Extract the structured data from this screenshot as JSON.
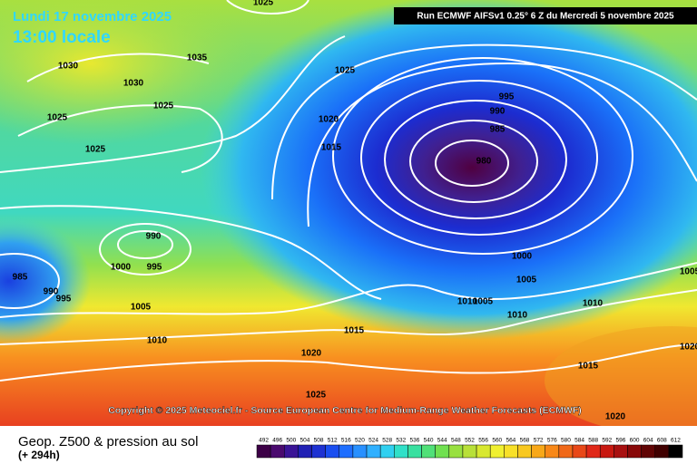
{
  "header": {
    "date": "Lundi 17 novembre 2025",
    "time": "13:00 locale",
    "run": "Run ECMWF AIFSv1 0.25° 6 Z du Mercredi 5 novembre 2025"
  },
  "map": {
    "copyright": "Copyright © 2025 Meteociel.fr - Source European Centre for Medium-Range Weather Forecasts (ECMWF)",
    "isobar_labels": [
      "1025",
      "1035",
      "1030",
      "1030",
      "1025",
      "1025",
      "1025",
      "1025",
      "1020",
      "1015",
      "995",
      "990",
      "985",
      "980",
      "990",
      "995",
      "1000",
      "985",
      "990",
      "995",
      "1005",
      "1010",
      "1020",
      "1015",
      "1000",
      "1005",
      "1010",
      "1005",
      "1010",
      "1010",
      "1015",
      "1025",
      "1020",
      "1020",
      "1005"
    ]
  },
  "footer": {
    "title": "Geop. Z500 & pression au sol",
    "lead": "(+ 294h)"
  },
  "legend": {
    "levels": [
      "492",
      "496",
      "500",
      "504",
      "508",
      "512",
      "516",
      "520",
      "524",
      "528",
      "532",
      "536",
      "540",
      "544",
      "548",
      "552",
      "556",
      "560",
      "564",
      "568",
      "572",
      "576",
      "580",
      "584",
      "588",
      "592",
      "596",
      "600",
      "604",
      "608",
      "612"
    ],
    "colors": [
      "#3c0046",
      "#4a0a6e",
      "#3a1496",
      "#2020b4",
      "#1e32d2",
      "#1a4ef0",
      "#1e6eff",
      "#2890ff",
      "#30b0ff",
      "#30d0f0",
      "#30e0c8",
      "#38e0a0",
      "#50e078",
      "#70e050",
      "#98e040",
      "#b8e038",
      "#d8e830",
      "#f0f030",
      "#f8e028",
      "#f8c820",
      "#f8a818",
      "#f88818",
      "#f06818",
      "#e84818",
      "#e02818",
      "#c81810",
      "#a81010",
      "#880808",
      "#600404",
      "#400000",
      "#000000"
    ]
  }
}
